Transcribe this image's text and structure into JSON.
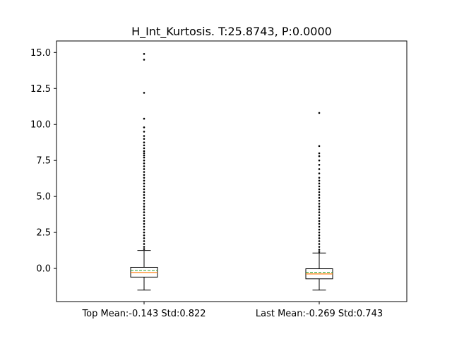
{
  "chart_data": {
    "type": "box",
    "title": "H_Int_Kurtosis. T:25.8743, P:0.0000",
    "xlabel": "",
    "ylabel": "",
    "ylim": [
      -2.3,
      15.8
    ],
    "yticks": [
      0.0,
      2.5,
      5.0,
      7.5,
      10.0,
      12.5,
      15.0
    ],
    "ytick_labels": [
      "0.0",
      "2.5",
      "5.0",
      "7.5",
      "10.0",
      "12.5",
      "15.0"
    ],
    "grid": false,
    "categories": [
      "Top Mean:-0.143 Std:0.822",
      "Last Mean:-0.269 Std:0.743"
    ],
    "boxes": [
      {
        "category": "Top Mean:-0.143 Std:0.822",
        "whisker_low": -1.5,
        "q1": -0.6,
        "median": -0.28,
        "mean": -0.143,
        "q3": 0.08,
        "whisker_high": 1.25,
        "outliers": [
          1.35,
          1.5,
          1.7,
          1.9,
          2.1,
          2.3,
          2.5,
          2.7,
          2.9,
          3.1,
          3.3,
          3.5,
          3.7,
          3.9,
          4.1,
          4.3,
          4.5,
          4.7,
          4.9,
          5.1,
          5.3,
          5.5,
          5.7,
          5.9,
          6.1,
          6.3,
          6.5,
          6.7,
          6.9,
          7.1,
          7.3,
          7.5,
          7.7,
          7.85,
          8.0,
          8.15,
          8.35,
          8.55,
          8.75,
          9.0,
          9.2,
          9.5,
          9.8,
          10.4,
          12.2,
          14.5,
          14.9
        ]
      },
      {
        "category": "Last Mean:-0.269 Std:0.743",
        "whisker_low": -1.5,
        "q1": -0.72,
        "median": -0.38,
        "mean": -0.269,
        "q3": -0.02,
        "whisker_high": 1.07,
        "outliers": [
          1.15,
          1.3,
          1.5,
          1.7,
          1.9,
          2.1,
          2.3,
          2.5,
          2.7,
          2.9,
          3.1,
          3.3,
          3.5,
          3.7,
          3.9,
          4.1,
          4.3,
          4.5,
          4.7,
          4.9,
          5.1,
          5.3,
          5.5,
          5.7,
          5.9,
          6.1,
          6.3,
          6.6,
          6.9,
          7.2,
          7.5,
          7.8,
          8.0,
          8.5,
          10.8
        ]
      }
    ],
    "colors": {
      "box": "#000000",
      "median": "#ff7f0e",
      "mean": "#2ca02c"
    }
  }
}
